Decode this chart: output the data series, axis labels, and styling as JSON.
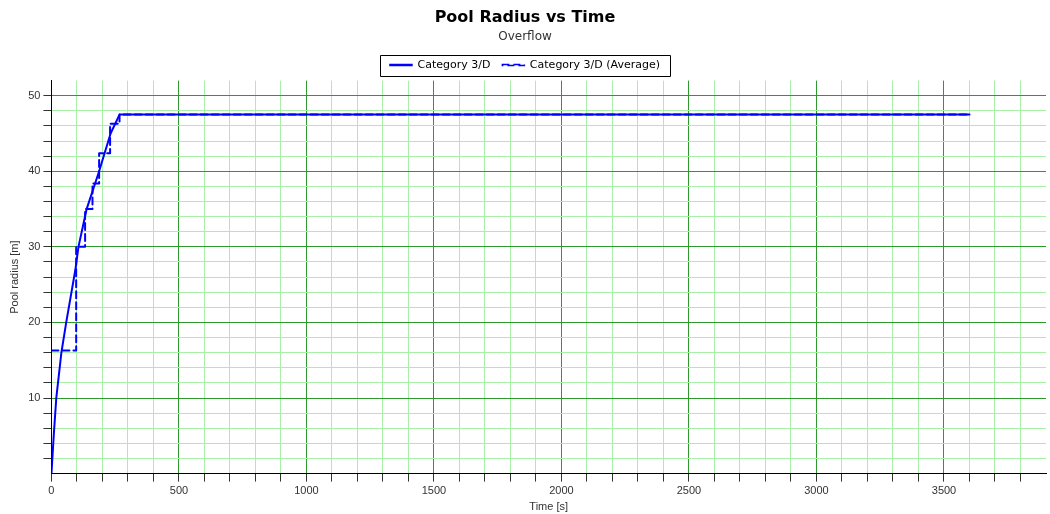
{
  "chart_data": {
    "type": "line",
    "title": "Pool Radius vs Time",
    "subtitle": "Overflow",
    "xlabel": "Time [s]",
    "ylabel": "Pool radius [m]",
    "xlim": [
      0,
      3900
    ],
    "ylim": [
      0,
      52
    ],
    "xticks": [
      0,
      {
        "value": 100,
        "label": null
      },
      {
        "value": 200,
        "label": null
      },
      {
        "value": 300,
        "label": null
      },
      {
        "value": 400,
        "label": null
      },
      500,
      {
        "value": 600,
        "label": null
      },
      {
        "value": 700,
        "label": null
      },
      {
        "value": 800,
        "label": null
      },
      {
        "value": 900,
        "label": null
      },
      1000,
      {
        "value": 1100,
        "label": null
      },
      {
        "value": 1200,
        "label": null
      },
      {
        "value": 1300,
        "label": null
      },
      {
        "value": 1400,
        "label": null
      },
      1500,
      {
        "value": 1600,
        "label": null
      },
      {
        "value": 1700,
        "label": null
      },
      {
        "value": 1800,
        "label": null
      },
      {
        "value": 1900,
        "label": null
      },
      2000,
      {
        "value": 2100,
        "label": null
      },
      {
        "value": 2200,
        "label": null
      },
      {
        "value": 2300,
        "label": null
      },
      {
        "value": 2400,
        "label": null
      },
      2500,
      {
        "value": 2600,
        "label": null
      },
      {
        "value": 2700,
        "label": null
      },
      {
        "value": 2800,
        "label": null
      },
      {
        "value": 2900,
        "label": null
      },
      3000,
      {
        "value": 3100,
        "label": null
      },
      {
        "value": 3200,
        "label": null
      },
      {
        "value": 3300,
        "label": null
      },
      {
        "value": 3400,
        "label": null
      },
      3500,
      {
        "value": 3600,
        "label": null
      },
      {
        "value": 3700,
        "label": null
      },
      {
        "value": 3800,
        "label": null
      }
    ],
    "yticks": [
      {
        "value": 2,
        "label": null
      },
      {
        "value": 4,
        "label": null
      },
      {
        "value": 6,
        "label": null
      },
      {
        "value": 8,
        "label": null
      },
      10,
      {
        "value": 12,
        "label": null
      },
      {
        "value": 14,
        "label": null
      },
      {
        "value": 16,
        "label": null
      },
      {
        "value": 18,
        "label": null
      },
      20,
      {
        "value": 22,
        "label": null
      },
      {
        "value": 24,
        "label": null
      },
      {
        "value": 26,
        "label": null
      },
      {
        "value": 28,
        "label": null
      },
      30,
      {
        "value": 32,
        "label": null
      },
      {
        "value": 34,
        "label": null
      },
      {
        "value": 36,
        "label": null
      },
      {
        "value": 38,
        "label": null
      },
      40,
      {
        "value": 42,
        "label": null
      },
      {
        "value": 44,
        "label": null
      },
      {
        "value": 46,
        "label": null
      },
      {
        "value": 48,
        "label": null
      },
      50
    ],
    "grid": true,
    "legend": "top",
    "marker": "none",
    "series": [
      {
        "name": "Category 3/D",
        "line_style": "solid",
        "color": "#0000ff",
        "x": [
          0,
          9,
          19,
          39,
          58,
          94,
          106,
          138,
          187,
          232,
          267,
          3600
        ],
        "values": [
          0,
          5,
          10,
          16,
          20,
          27,
          30,
          35,
          40,
          45,
          47.5,
          47.5
        ]
      },
      {
        "name": "Category 3/D (Average)",
        "type": "step",
        "line_style": "dashed",
        "color": "#0000ff",
        "x": [
          0,
          97,
          132,
          161,
          187,
          230,
          267,
          3600
        ],
        "values": [
          16.3,
          30,
          35,
          38.4,
          42.4,
          46.3,
          47.5,
          47.5
        ]
      }
    ]
  }
}
